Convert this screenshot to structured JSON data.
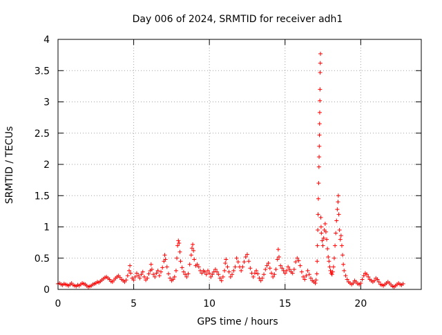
{
  "chart_data": {
    "type": "scatter",
    "title": "Day 006 of 2024, SRMTID for receiver adh1",
    "xlabel": "GPS time / hours",
    "ylabel": "SRMTID / TECUs",
    "xlim": [
      0,
      24
    ],
    "ylim": [
      0,
      4
    ],
    "x_ticks": [
      0,
      5,
      10,
      15,
      20
    ],
    "x_tick_labels": [
      "0",
      "5",
      "10",
      "15",
      "20"
    ],
    "y_ticks": [
      0,
      0.5,
      1,
      1.5,
      2,
      2.5,
      3,
      3.5,
      4
    ],
    "y_tick_labels": [
      "0",
      "0.5",
      "1",
      "1.5",
      "2",
      "2.5",
      "3",
      "3.5",
      "4"
    ],
    "grid": true,
    "marker": "+",
    "series": [
      {
        "name": "adh1",
        "color": "#ff0000",
        "points": [
          [
            0.0,
            0.09
          ],
          [
            0.1,
            0.1
          ],
          [
            0.2,
            0.08
          ],
          [
            0.3,
            0.07
          ],
          [
            0.4,
            0.09
          ],
          [
            0.5,
            0.08
          ],
          [
            0.6,
            0.07
          ],
          [
            0.7,
            0.06
          ],
          [
            0.8,
            0.08
          ],
          [
            0.9,
            0.1
          ],
          [
            1.0,
            0.07
          ],
          [
            1.1,
            0.06
          ],
          [
            1.2,
            0.05
          ],
          [
            1.3,
            0.07
          ],
          [
            1.4,
            0.06
          ],
          [
            1.5,
            0.08
          ],
          [
            1.6,
            0.1
          ],
          [
            1.7,
            0.09
          ],
          [
            1.8,
            0.08
          ],
          [
            1.9,
            0.06
          ],
          [
            2.0,
            0.04
          ],
          [
            2.1,
            0.05
          ],
          [
            2.2,
            0.06
          ],
          [
            2.3,
            0.08
          ],
          [
            2.4,
            0.09
          ],
          [
            2.5,
            0.1
          ],
          [
            2.6,
            0.12
          ],
          [
            2.7,
            0.11
          ],
          [
            2.8,
            0.13
          ],
          [
            2.9,
            0.15
          ],
          [
            3.0,
            0.17
          ],
          [
            3.1,
            0.19
          ],
          [
            3.2,
            0.2
          ],
          [
            3.3,
            0.18
          ],
          [
            3.4,
            0.16
          ],
          [
            3.5,
            0.13
          ],
          [
            3.6,
            0.12
          ],
          [
            3.7,
            0.15
          ],
          [
            3.8,
            0.18
          ],
          [
            3.9,
            0.2
          ],
          [
            4.0,
            0.22
          ],
          [
            4.1,
            0.19
          ],
          [
            4.2,
            0.16
          ],
          [
            4.3,
            0.14
          ],
          [
            4.4,
            0.12
          ],
          [
            4.5,
            0.15
          ],
          [
            4.6,
            0.22
          ],
          [
            4.7,
            0.3
          ],
          [
            4.75,
            0.38
          ],
          [
            4.8,
            0.26
          ],
          [
            4.9,
            0.18
          ],
          [
            5.0,
            0.15
          ],
          [
            5.1,
            0.2
          ],
          [
            5.2,
            0.26
          ],
          [
            5.3,
            0.22
          ],
          [
            5.4,
            0.18
          ],
          [
            5.5,
            0.24
          ],
          [
            5.6,
            0.28
          ],
          [
            5.7,
            0.2
          ],
          [
            5.8,
            0.15
          ],
          [
            5.9,
            0.18
          ],
          [
            6.0,
            0.25
          ],
          [
            6.1,
            0.3
          ],
          [
            6.15,
            0.4
          ],
          [
            6.2,
            0.32
          ],
          [
            6.3,
            0.24
          ],
          [
            6.4,
            0.2
          ],
          [
            6.5,
            0.26
          ],
          [
            6.6,
            0.3
          ],
          [
            6.7,
            0.22
          ],
          [
            6.8,
            0.28
          ],
          [
            6.9,
            0.35
          ],
          [
            7.0,
            0.45
          ],
          [
            7.05,
            0.55
          ],
          [
            7.1,
            0.48
          ],
          [
            7.2,
            0.36
          ],
          [
            7.3,
            0.25
          ],
          [
            7.4,
            0.18
          ],
          [
            7.5,
            0.14
          ],
          [
            7.6,
            0.16
          ],
          [
            7.7,
            0.2
          ],
          [
            7.8,
            0.3
          ],
          [
            7.85,
            0.5
          ],
          [
            7.9,
            0.7
          ],
          [
            7.95,
            0.78
          ],
          [
            8.0,
            0.74
          ],
          [
            8.05,
            0.6
          ],
          [
            8.1,
            0.45
          ],
          [
            8.2,
            0.35
          ],
          [
            8.3,
            0.28
          ],
          [
            8.4,
            0.24
          ],
          [
            8.5,
            0.2
          ],
          [
            8.6,
            0.25
          ],
          [
            8.7,
            0.4
          ],
          [
            8.8,
            0.55
          ],
          [
            8.85,
            0.66
          ],
          [
            8.9,
            0.72
          ],
          [
            8.95,
            0.62
          ],
          [
            9.0,
            0.48
          ],
          [
            9.1,
            0.38
          ],
          [
            9.2,
            0.4
          ],
          [
            9.3,
            0.36
          ],
          [
            9.4,
            0.3
          ],
          [
            9.5,
            0.26
          ],
          [
            9.6,
            0.3
          ],
          [
            9.7,
            0.28
          ],
          [
            9.8,
            0.24
          ],
          [
            9.9,
            0.3
          ],
          [
            10.0,
            0.26
          ],
          [
            10.1,
            0.2
          ],
          [
            10.2,
            0.24
          ],
          [
            10.3,
            0.28
          ],
          [
            10.4,
            0.32
          ],
          [
            10.5,
            0.28
          ],
          [
            10.6,
            0.24
          ],
          [
            10.7,
            0.18
          ],
          [
            10.8,
            0.14
          ],
          [
            10.9,
            0.2
          ],
          [
            11.0,
            0.3
          ],
          [
            11.05,
            0.42
          ],
          [
            11.1,
            0.48
          ],
          [
            11.2,
            0.36
          ],
          [
            11.3,
            0.28
          ],
          [
            11.4,
            0.2
          ],
          [
            11.5,
            0.24
          ],
          [
            11.6,
            0.3
          ],
          [
            11.7,
            0.36
          ],
          [
            11.8,
            0.5
          ],
          [
            11.9,
            0.44
          ],
          [
            12.0,
            0.36
          ],
          [
            12.1,
            0.3
          ],
          [
            12.2,
            0.36
          ],
          [
            12.3,
            0.44
          ],
          [
            12.4,
            0.52
          ],
          [
            12.5,
            0.56
          ],
          [
            12.6,
            0.45
          ],
          [
            12.7,
            0.34
          ],
          [
            12.8,
            0.26
          ],
          [
            12.9,
            0.2
          ],
          [
            13.0,
            0.26
          ],
          [
            13.1,
            0.3
          ],
          [
            13.2,
            0.25
          ],
          [
            13.3,
            0.18
          ],
          [
            13.4,
            0.14
          ],
          [
            13.5,
            0.18
          ],
          [
            13.6,
            0.24
          ],
          [
            13.7,
            0.32
          ],
          [
            13.8,
            0.38
          ],
          [
            13.9,
            0.42
          ],
          [
            14.0,
            0.34
          ],
          [
            14.1,
            0.26
          ],
          [
            14.2,
            0.2
          ],
          [
            14.3,
            0.24
          ],
          [
            14.4,
            0.32
          ],
          [
            14.5,
            0.48
          ],
          [
            14.55,
            0.64
          ],
          [
            14.6,
            0.52
          ],
          [
            14.7,
            0.38
          ],
          [
            14.8,
            0.34
          ],
          [
            14.9,
            0.3
          ],
          [
            15.0,
            0.26
          ],
          [
            15.1,
            0.3
          ],
          [
            15.2,
            0.36
          ],
          [
            15.3,
            0.32
          ],
          [
            15.4,
            0.28
          ],
          [
            15.5,
            0.26
          ],
          [
            15.6,
            0.32
          ],
          [
            15.7,
            0.44
          ],
          [
            15.8,
            0.5
          ],
          [
            15.9,
            0.46
          ],
          [
            16.0,
            0.38
          ],
          [
            16.1,
            0.28
          ],
          [
            16.2,
            0.2
          ],
          [
            16.3,
            0.16
          ],
          [
            16.4,
            0.22
          ],
          [
            16.5,
            0.3
          ],
          [
            16.6,
            0.24
          ],
          [
            16.7,
            0.18
          ],
          [
            16.8,
            0.14
          ],
          [
            16.9,
            0.12
          ],
          [
            17.0,
            0.1
          ],
          [
            17.05,
            0.15
          ],
          [
            17.1,
            0.25
          ],
          [
            17.12,
            0.45
          ],
          [
            17.14,
            0.7
          ],
          [
            17.16,
            0.95
          ],
          [
            17.18,
            1.2
          ],
          [
            17.2,
            1.45
          ],
          [
            17.22,
            1.7
          ],
          [
            17.24,
            1.96
          ],
          [
            17.25,
            2.12
          ],
          [
            17.26,
            2.29
          ],
          [
            17.27,
            2.47
          ],
          [
            17.28,
            2.65
          ],
          [
            17.29,
            2.83
          ],
          [
            17.3,
            3.02
          ],
          [
            17.31,
            3.2
          ],
          [
            17.32,
            3.47
          ],
          [
            17.33,
            3.62
          ],
          [
            17.34,
            3.77
          ],
          [
            17.36,
            1.15
          ],
          [
            17.38,
            1.0
          ],
          [
            17.4,
            0.9
          ],
          [
            17.45,
            0.78
          ],
          [
            17.5,
            0.7
          ],
          [
            17.55,
            0.82
          ],
          [
            17.6,
            0.95
          ],
          [
            17.65,
            1.05
          ],
          [
            17.7,
            0.92
          ],
          [
            17.75,
            0.8
          ],
          [
            17.8,
            0.65
          ],
          [
            17.85,
            0.52
          ],
          [
            17.9,
            0.45
          ],
          [
            17.95,
            0.36
          ],
          [
            18.0,
            0.3
          ],
          [
            18.05,
            0.26
          ],
          [
            18.1,
            0.24
          ],
          [
            18.15,
            0.28
          ],
          [
            18.2,
            0.36
          ],
          [
            18.25,
            0.5
          ],
          [
            18.3,
            0.7
          ],
          [
            18.35,
            0.9
          ],
          [
            18.4,
            1.1
          ],
          [
            18.45,
            1.28
          ],
          [
            18.5,
            1.4
          ],
          [
            18.52,
            1.5
          ],
          [
            18.55,
            1.2
          ],
          [
            18.6,
            0.95
          ],
          [
            18.65,
            0.8
          ],
          [
            18.7,
            0.86
          ],
          [
            18.75,
            0.7
          ],
          [
            18.8,
            0.55
          ],
          [
            18.85,
            0.4
          ],
          [
            18.9,
            0.3
          ],
          [
            19.0,
            0.22
          ],
          [
            19.1,
            0.16
          ],
          [
            19.2,
            0.12
          ],
          [
            19.3,
            0.1
          ],
          [
            19.4,
            0.08
          ],
          [
            19.5,
            0.1
          ],
          [
            19.6,
            0.14
          ],
          [
            19.7,
            0.12
          ],
          [
            19.8,
            0.09
          ],
          [
            19.9,
            0.08
          ],
          [
            20.0,
            0.1
          ],
          [
            20.1,
            0.16
          ],
          [
            20.2,
            0.22
          ],
          [
            20.3,
            0.26
          ],
          [
            20.4,
            0.24
          ],
          [
            20.5,
            0.2
          ],
          [
            20.6,
            0.16
          ],
          [
            20.7,
            0.14
          ],
          [
            20.8,
            0.12
          ],
          [
            20.9,
            0.14
          ],
          [
            21.0,
            0.18
          ],
          [
            21.1,
            0.16
          ],
          [
            21.2,
            0.12
          ],
          [
            21.3,
            0.08
          ],
          [
            21.4,
            0.07
          ],
          [
            21.5,
            0.06
          ],
          [
            21.6,
            0.08
          ],
          [
            21.7,
            0.1
          ],
          [
            21.8,
            0.12
          ],
          [
            21.9,
            0.1
          ],
          [
            22.0,
            0.07
          ],
          [
            22.1,
            0.05
          ],
          [
            22.2,
            0.04
          ],
          [
            22.3,
            0.06
          ],
          [
            22.4,
            0.08
          ],
          [
            22.5,
            0.1
          ],
          [
            22.6,
            0.08
          ],
          [
            22.7,
            0.07
          ],
          [
            22.8,
            0.09
          ]
        ]
      }
    ]
  }
}
